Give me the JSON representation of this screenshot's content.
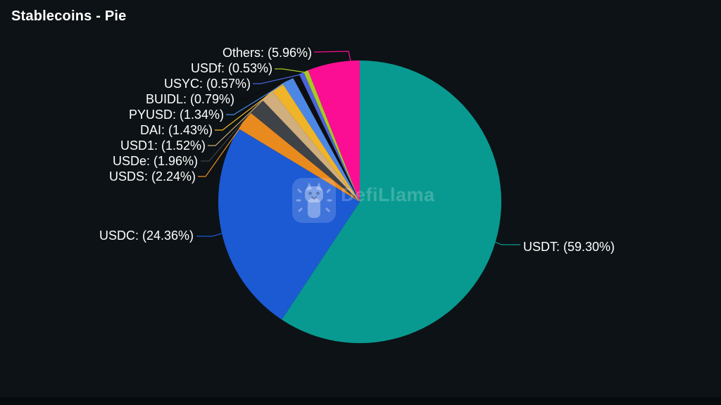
{
  "title": "Stablecoins - Pie",
  "watermark": {
    "text": "DefiLlama"
  },
  "colors": {
    "background": "#0c1215",
    "text": "#ffffff"
  },
  "chart_data": {
    "type": "pie",
    "title": "Stablecoins - Pie",
    "unit": "percent",
    "start_angle": "12-oclock",
    "direction": "clockwise",
    "legend_position": "none",
    "label_style": "outside-with-leader-lines",
    "slices": [
      {
        "name": "USDT",
        "value": 59.3,
        "display": "USDT: (59.30%)",
        "color": "#089a90"
      },
      {
        "name": "USDC",
        "value": 24.36,
        "display": "USDC: (24.36%)",
        "color": "#1c5ad4"
      },
      {
        "name": "USDS",
        "value": 2.24,
        "display": "USDS: (2.24%)",
        "color": "#e98a1e"
      },
      {
        "name": "USDe",
        "value": 1.96,
        "display": "USDe: (1.96%)",
        "color": "#3f4247"
      },
      {
        "name": "USD1",
        "value": 1.52,
        "display": "USD1: (1.52%)",
        "color": "#d0ae7e"
      },
      {
        "name": "DAI",
        "value": 1.43,
        "display": "DAI: (1.43%)",
        "color": "#f0b42a"
      },
      {
        "name": "PYUSD",
        "value": 1.34,
        "display": "PYUSD: (1.34%)",
        "color": "#4d87e6"
      },
      {
        "name": "BUIDL",
        "value": 0.79,
        "display": "BUIDL: (0.79%)",
        "color": "#0d0e10"
      },
      {
        "name": "USYC",
        "value": 0.57,
        "display": "USYC: (0.57%)",
        "color": "#4c63d9"
      },
      {
        "name": "USDf",
        "value": 0.53,
        "display": "USDf: (0.53%)",
        "color": "#a8ca22"
      },
      {
        "name": "Others",
        "value": 5.96,
        "display": "Others: (5.96%)",
        "color": "#fb0e94"
      }
    ]
  }
}
